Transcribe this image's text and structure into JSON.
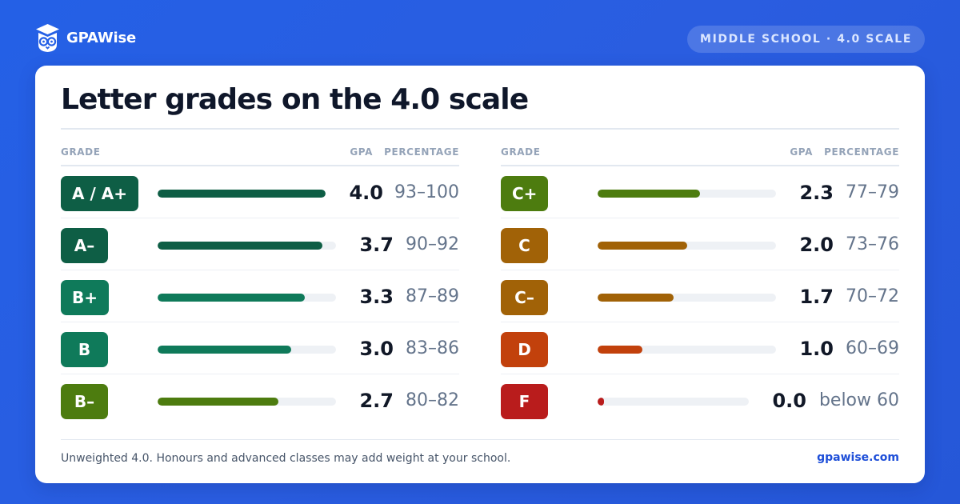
{
  "brand": {
    "name": "GPAWise",
    "logo_icon": "owl-graduation-cap-icon"
  },
  "scale_badge": "MIDDLE SCHOOL · 4.0 SCALE",
  "title": "Letter grades on the 4.0 scale",
  "columns_header": {
    "grade": "GRADE",
    "gpa": "GPA",
    "percentage": "PERCENTAGE"
  },
  "colors": {
    "background": "#2460e6",
    "dark_green": "#0e5e45",
    "green": "#0f7a5a",
    "olive": "#4d7c0f",
    "amber": "#a16207",
    "orange_red": "#c2410c",
    "red": "#b91c1c"
  },
  "grades_left": [
    {
      "grade": "A / A+",
      "gpa": "4.0",
      "percentage": "93–100",
      "fill": 1.0,
      "color": "#0e5e45"
    },
    {
      "grade": "A–",
      "gpa": "3.7",
      "percentage": "90–92",
      "fill": 0.925,
      "color": "#0e5e45"
    },
    {
      "grade": "B+",
      "gpa": "3.3",
      "percentage": "87–89",
      "fill": 0.825,
      "color": "#0f7a5a"
    },
    {
      "grade": "B",
      "gpa": "3.0",
      "percentage": "83–86",
      "fill": 0.75,
      "color": "#0f7a5a"
    },
    {
      "grade": "B–",
      "gpa": "2.7",
      "percentage": "80–82",
      "fill": 0.675,
      "color": "#4d7c0f"
    }
  ],
  "grades_right": [
    {
      "grade": "C+",
      "gpa": "2.3",
      "percentage": "77–79",
      "fill": 0.575,
      "color": "#4d7c0f"
    },
    {
      "grade": "C",
      "gpa": "2.0",
      "percentage": "73–76",
      "fill": 0.5,
      "color": "#a16207"
    },
    {
      "grade": "C–",
      "gpa": "1.7",
      "percentage": "70–72",
      "fill": 0.425,
      "color": "#a16207"
    },
    {
      "grade": "D",
      "gpa": "1.0",
      "percentage": "60–69",
      "fill": 0.25,
      "color": "#c2410c"
    },
    {
      "grade": "F",
      "gpa": "0.0",
      "percentage": "below 60",
      "fill": 0.0,
      "color": "#b91c1c"
    }
  ],
  "footnote": "Unweighted 4.0. Honours and advanced classes may add weight at your school.",
  "site": "gpawise.com"
}
